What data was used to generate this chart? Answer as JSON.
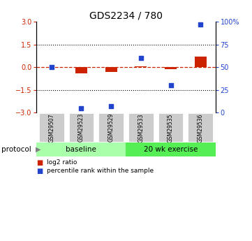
{
  "title": "GDS2234 / 780",
  "samples": [
    "GSM29507",
    "GSM29523",
    "GSM29529",
    "GSM29533",
    "GSM29535",
    "GSM29536"
  ],
  "log2_ratio": [
    0.0,
    -0.42,
    -0.32,
    0.05,
    -0.12,
    0.72
  ],
  "percentile_rank": [
    50,
    5,
    7,
    60,
    30,
    97
  ],
  "bar_color": "#cc2200",
  "dot_color": "#2244cc",
  "ylim_left": [
    -3,
    3
  ],
  "ylim_right": [
    0,
    100
  ],
  "yticks_left": [
    -3,
    -1.5,
    0,
    1.5,
    3
  ],
  "yticks_right": [
    0,
    25,
    50,
    75,
    100
  ],
  "dotted_lines": [
    1.5,
    -1.5
  ],
  "n_baseline": 3,
  "n_exercise": 3,
  "baseline_label": "baseline",
  "exercise_label": "20 wk exercise",
  "protocol_label": "protocol",
  "baseline_color": "#aaffaa",
  "exercise_color": "#55ee55",
  "sample_box_color": "#cccccc",
  "legend_bar_label": "log2 ratio",
  "legend_dot_label": "percentile rank within the sample",
  "bar_width": 0.4
}
